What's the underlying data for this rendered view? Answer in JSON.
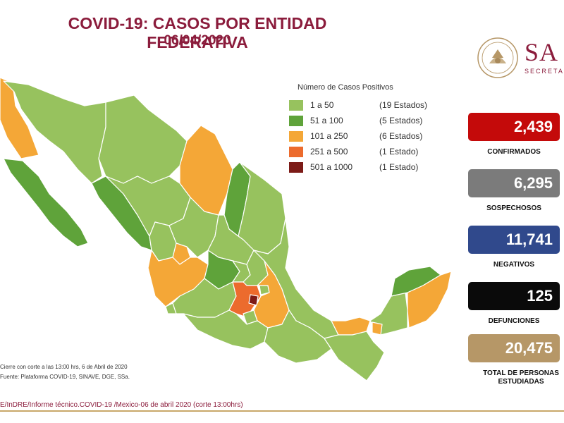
{
  "header": {
    "title": "COVID-19: CASOS POR ENTIDAD FEDERATIVA",
    "date": "06/04/2020",
    "brand": "SA",
    "brand_sub": "SECRETARÍ"
  },
  "legend": {
    "title": "Número de Casos Positivos",
    "items": [
      {
        "range": "1 a 50",
        "count": "(19 Estados)",
        "color": "#97c25e"
      },
      {
        "range": "51 a 100",
        "count": "(5 Estados)",
        "color": "#5fa33a"
      },
      {
        "range": "101 a 250",
        "count": "(6 Estados)",
        "color": "#f4a737"
      },
      {
        "range": "251 a 500",
        "count": "(1 Estado)",
        "color": "#ec6b2d"
      },
      {
        "range": "501 a 1000",
        "count": "(1 Estado)",
        "color": "#7c1b17"
      }
    ]
  },
  "stats": [
    {
      "value": "2,439",
      "label": "CONFIRMADOS",
      "color": "#c40a0a"
    },
    {
      "value": "6,295",
      "label": "SOSPECHOSOS",
      "color": "#7b7b7b"
    },
    {
      "value": "11,741",
      "label": "NEGATIVOS",
      "color": "#30498c"
    },
    {
      "value": "125",
      "label": "DEFUNCIONES",
      "color": "#0a0a0a"
    },
    {
      "value": "20,475",
      "label": "TOTAL DE PERSONAS ESTUDIADAS",
      "color": "#b69767"
    }
  ],
  "footnotes": {
    "cutoff": "Cierre con corte a las 13:00 hrs, 6 de Abril de 2020",
    "source": "Fuente: Plataforma COVID-19, SINAVE, DGE, SSa.",
    "reference": "E/InDRE/Informe técnico.COVID-19 /Mexico-06 de abril 2020 (corte 13:00hrs)"
  },
  "map_colors": {
    "light": "#97c25e",
    "medium": "#5fa33a",
    "orange": "#f4a737",
    "red_orange": "#ec6b2d",
    "dark": "#7c1b17",
    "border": "#ffffff"
  }
}
